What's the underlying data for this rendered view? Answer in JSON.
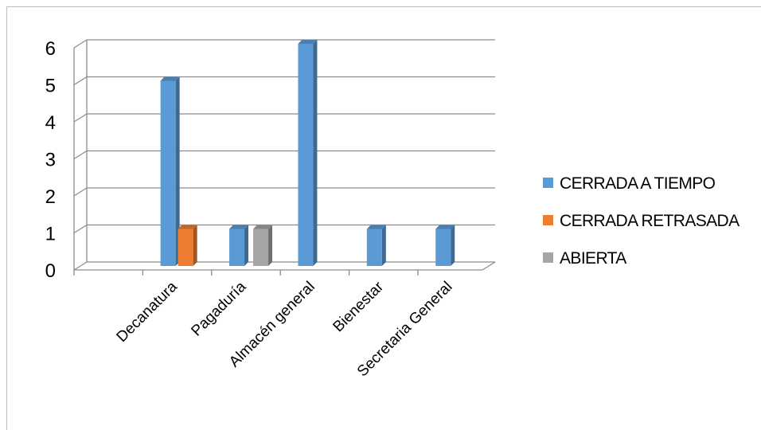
{
  "chart_data": {
    "type": "bar",
    "categories": [
      "Decanatura",
      "Pagaduría",
      "Almacén general",
      "Bienestar",
      "Secretaria General"
    ],
    "series": [
      {
        "name": "CERRADA A TIEMPO",
        "color": "#5b9bd5",
        "values": [
          5,
          1,
          6,
          1,
          1
        ]
      },
      {
        "name": "CERRADA RETRASADA",
        "color": "#ed7d31",
        "values": [
          1,
          0,
          0,
          0,
          0
        ]
      },
      {
        "name": "ABIERTA",
        "color": "#a5a5a5",
        "values": [
          0,
          1,
          0,
          0,
          0
        ]
      }
    ],
    "ylim": [
      0,
      6
    ],
    "yticks": [
      0,
      1,
      2,
      3,
      4,
      5,
      6
    ],
    "grid": true,
    "legend": "right",
    "title": "",
    "xlabel": "",
    "ylabel": ""
  }
}
